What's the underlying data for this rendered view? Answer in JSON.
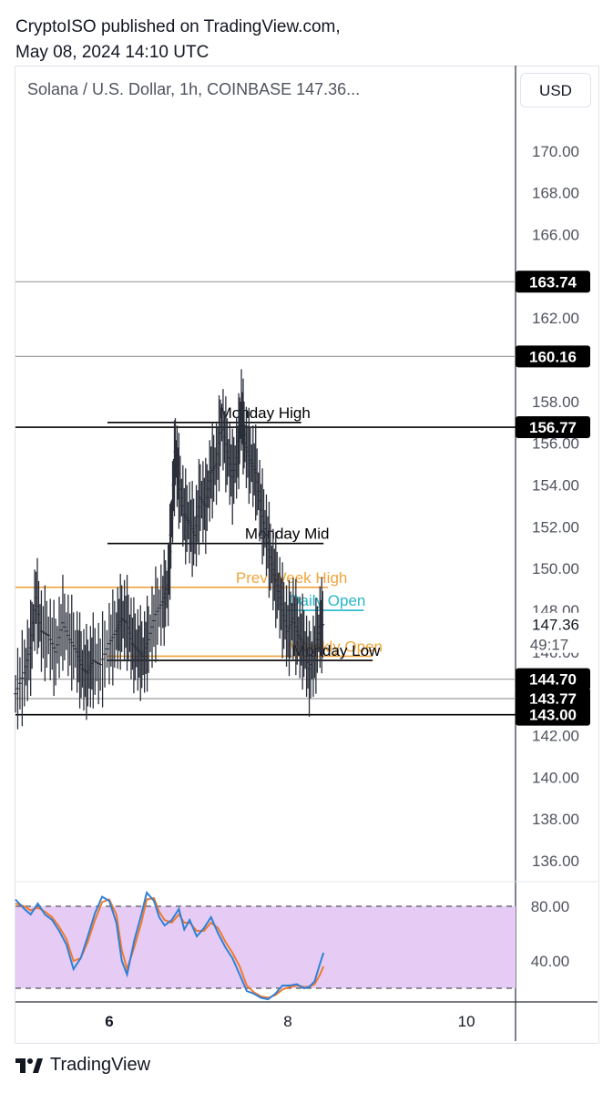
{
  "header": {
    "line1": "CryptoISO published on TradingView.com,",
    "line2": "May 08, 2024 14:10 UTC"
  },
  "symbol_title": "Solana / U.S. Dollar, 1h, COINBASE  147.36...",
  "currency_button": "USD",
  "footer_brand": "TradingView",
  "colors": {
    "level_black": "#000000",
    "level_gray": "#9e9e9e",
    "orange": "#f0a43a",
    "cyan": "#25b6c8",
    "rsi_blue": "#2f80d8",
    "rsi_orange": "#f07a2a",
    "rsi_band": "#e6ccf5"
  },
  "chart_data": {
    "type": "line",
    "price_ylim": [
      135,
      172
    ],
    "price_ticks": [
      "170.00",
      "168.00",
      "166.00",
      "164.00",
      "162.00",
      "160.00",
      "158.00",
      "156.00",
      "154.00",
      "152.00",
      "150.00",
      "148.00",
      "146.00",
      "144.00",
      "142.00",
      "140.00",
      "138.00",
      "136.00"
    ],
    "x_ticks": [
      {
        "label": "6",
        "day": 6
      },
      {
        "label": "8",
        "day": 8
      },
      {
        "label": "10",
        "day": 10
      }
    ],
    "x_range_days": [
      4.95,
      10.55
    ],
    "price_series": [
      [
        4.95,
        144.0
      ],
      [
        5.05,
        145.0
      ],
      [
        5.12,
        146.2
      ],
      [
        5.18,
        148.6
      ],
      [
        5.24,
        147.0
      ],
      [
        5.32,
        146.8
      ],
      [
        5.4,
        146.0
      ],
      [
        5.48,
        147.4
      ],
      [
        5.56,
        146.6
      ],
      [
        5.64,
        146.0
      ],
      [
        5.7,
        145.2
      ],
      [
        5.76,
        145.0
      ],
      [
        5.82,
        145.6
      ],
      [
        5.9,
        145.4
      ],
      [
        6.0,
        146.4
      ],
      [
        6.08,
        147.0
      ],
      [
        6.14,
        147.6
      ],
      [
        6.2,
        147.4
      ],
      [
        6.26,
        146.4
      ],
      [
        6.32,
        146.1
      ],
      [
        6.38,
        145.8
      ],
      [
        6.44,
        146.6
      ],
      [
        6.52,
        147.8
      ],
      [
        6.6,
        148.4
      ],
      [
        6.66,
        149.2
      ],
      [
        6.7,
        152.4
      ],
      [
        6.74,
        155.6
      ],
      [
        6.78,
        154.2
      ],
      [
        6.84,
        152.6
      ],
      [
        6.9,
        152.2
      ],
      [
        6.96,
        151.6
      ],
      [
        7.02,
        153.4
      ],
      [
        7.08,
        153.0
      ],
      [
        7.14,
        154.6
      ],
      [
        7.2,
        155.0
      ],
      [
        7.26,
        157.0
      ],
      [
        7.32,
        155.6
      ],
      [
        7.38,
        154.4
      ],
      [
        7.44,
        155.6
      ],
      [
        7.48,
        157.6
      ],
      [
        7.52,
        156.0
      ],
      [
        7.58,
        155.2
      ],
      [
        7.64,
        154.6
      ],
      [
        7.7,
        152.8
      ],
      [
        7.76,
        151.6
      ],
      [
        7.82,
        150.2
      ],
      [
        7.88,
        149.2
      ],
      [
        7.94,
        148.0
      ],
      [
        8.0,
        147.0
      ],
      [
        8.06,
        147.6
      ],
      [
        8.12,
        146.8
      ],
      [
        8.18,
        146.4
      ],
      [
        8.24,
        145.2
      ],
      [
        8.3,
        146.0
      ],
      [
        8.36,
        147.2
      ],
      [
        8.4,
        147.36
      ]
    ],
    "levels": [
      {
        "label": "163.74",
        "price": 163.74,
        "style": "gray",
        "x_from": 4.95,
        "badge": true
      },
      {
        "label": "160.16",
        "price": 160.16,
        "style": "gray",
        "x_from": 4.95,
        "badge": true
      },
      {
        "label": "156.77",
        "price": 156.77,
        "style": "black",
        "x_from": 4.95,
        "badge": true
      },
      {
        "label": "144.70",
        "price": 144.7,
        "style": "gray",
        "x_from": 4.95,
        "badge": true
      },
      {
        "label": "143.77",
        "price": 143.77,
        "style": "gray",
        "x_from": 4.95,
        "badge": true
      },
      {
        "label": "143.00",
        "price": 143.0,
        "style": "black",
        "x_from": 4.95,
        "badge": true
      }
    ],
    "annotations": [
      {
        "text": "Monday High",
        "price": 157.0,
        "x_from": 5.98,
        "x_to": 8.15,
        "style": "black"
      },
      {
        "text": "Monday Mid",
        "price": 151.2,
        "x_from": 5.98,
        "x_to": 8.4,
        "style": "black"
      },
      {
        "text": "Prev Week High",
        "price": 149.1,
        "x_from": 4.95,
        "x_to": 8.45,
        "style": "orange"
      },
      {
        "text": "Daily Open",
        "price": 148.0,
        "x_from": 7.98,
        "x_to": 8.85,
        "style": "cyan"
      },
      {
        "text": "Weekly Open",
        "price": 145.8,
        "x_from": 5.98,
        "x_to": 8.95,
        "style": "orange"
      },
      {
        "text": "Monday Low",
        "price": 145.6,
        "x_from": 5.98,
        "x_to": 8.95,
        "style": "black"
      }
    ],
    "last_price": {
      "price": "147.36",
      "countdown": "49:17"
    },
    "rsi": {
      "ticks": [
        "80.00",
        "40.00"
      ],
      "ylim": [
        10,
        98
      ],
      "band": [
        20,
        80
      ],
      "blue": [
        [
          4.95,
          85
        ],
        [
          5.05,
          78
        ],
        [
          5.12,
          74
        ],
        [
          5.2,
          82
        ],
        [
          5.28,
          74
        ],
        [
          5.36,
          70
        ],
        [
          5.44,
          62
        ],
        [
          5.52,
          52
        ],
        [
          5.6,
          34
        ],
        [
          5.68,
          42
        ],
        [
          5.76,
          58
        ],
        [
          5.84,
          75
        ],
        [
          5.92,
          87
        ],
        [
          6.0,
          84
        ],
        [
          6.08,
          68
        ],
        [
          6.14,
          40
        ],
        [
          6.2,
          30
        ],
        [
          6.28,
          55
        ],
        [
          6.36,
          74
        ],
        [
          6.42,
          90
        ],
        [
          6.5,
          84
        ],
        [
          6.56,
          72
        ],
        [
          6.62,
          66
        ],
        [
          6.7,
          70
        ],
        [
          6.78,
          78
        ],
        [
          6.84,
          63
        ],
        [
          6.9,
          70
        ],
        [
          6.98,
          58
        ],
        [
          7.06,
          64
        ],
        [
          7.14,
          72
        ],
        [
          7.22,
          60
        ],
        [
          7.3,
          50
        ],
        [
          7.38,
          42
        ],
        [
          7.46,
          30
        ],
        [
          7.54,
          18
        ],
        [
          7.62,
          16
        ],
        [
          7.7,
          13
        ],
        [
          7.78,
          12
        ],
        [
          7.86,
          16
        ],
        [
          7.94,
          22
        ],
        [
          8.02,
          22
        ],
        [
          8.1,
          23
        ],
        [
          8.18,
          20
        ],
        [
          8.24,
          21
        ],
        [
          8.3,
          25
        ],
        [
          8.36,
          38
        ],
        [
          8.4,
          46
        ]
      ],
      "orange": [
        [
          4.95,
          82
        ],
        [
          5.05,
          80
        ],
        [
          5.12,
          77
        ],
        [
          5.2,
          79
        ],
        [
          5.28,
          76
        ],
        [
          5.36,
          72
        ],
        [
          5.44,
          65
        ],
        [
          5.52,
          56
        ],
        [
          5.6,
          40
        ],
        [
          5.68,
          42
        ],
        [
          5.76,
          54
        ],
        [
          5.84,
          70
        ],
        [
          5.92,
          83
        ],
        [
          6.0,
          85
        ],
        [
          6.08,
          74
        ],
        [
          6.14,
          48
        ],
        [
          6.2,
          34
        ],
        [
          6.28,
          50
        ],
        [
          6.36,
          68
        ],
        [
          6.42,
          85
        ],
        [
          6.5,
          86
        ],
        [
          6.56,
          76
        ],
        [
          6.62,
          70
        ],
        [
          6.7,
          68
        ],
        [
          6.78,
          74
        ],
        [
          6.84,
          68
        ],
        [
          6.9,
          68
        ],
        [
          6.98,
          62
        ],
        [
          7.06,
          62
        ],
        [
          7.14,
          68
        ],
        [
          7.22,
          64
        ],
        [
          7.3,
          54
        ],
        [
          7.38,
          46
        ],
        [
          7.46,
          36
        ],
        [
          7.54,
          22
        ],
        [
          7.62,
          17
        ],
        [
          7.7,
          14
        ],
        [
          7.78,
          13
        ],
        [
          7.86,
          15
        ],
        [
          7.94,
          19
        ],
        [
          8.02,
          21
        ],
        [
          8.1,
          22
        ],
        [
          8.18,
          21
        ],
        [
          8.24,
          21
        ],
        [
          8.3,
          23
        ],
        [
          8.36,
          30
        ],
        [
          8.4,
          36
        ]
      ]
    }
  }
}
